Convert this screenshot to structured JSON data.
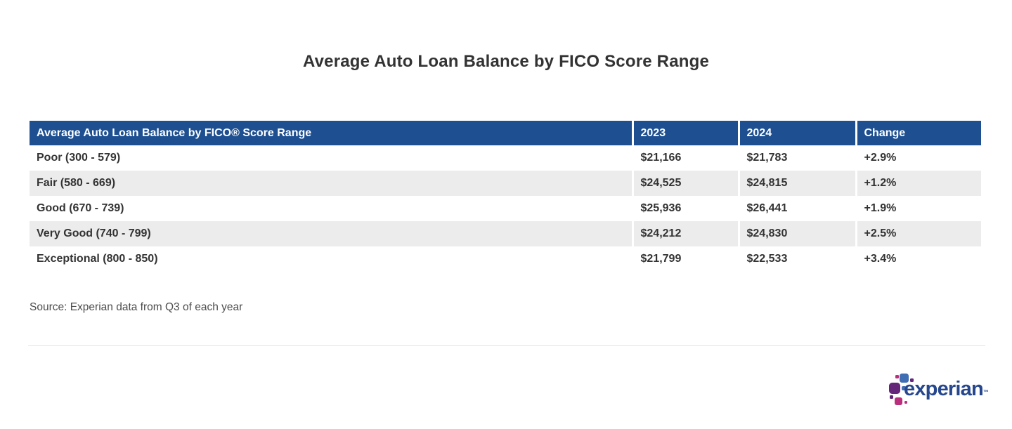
{
  "page": {
    "title": "Average Auto Loan Balance by FICO Score Range",
    "source_note": "Source: Experian data from Q3 of each year"
  },
  "table": {
    "columns": [
      "Average Auto Loan Balance by FICO® Score Range",
      "2023",
      "2024",
      "Change"
    ],
    "rows": [
      {
        "label": "Poor (300 - 579)",
        "y2023": "$21,166",
        "y2024": "$21,783",
        "change": "+2.9%"
      },
      {
        "label": "Fair (580 - 669)",
        "y2023": "$24,525",
        "y2024": "$24,815",
        "change": "+1.2%"
      },
      {
        "label": "Good (670 - 739)",
        "y2023": "$25,936",
        "y2024": "$26,441",
        "change": "+1.9%"
      },
      {
        "label": "Very Good (740 - 799)",
        "y2023": "$24,212",
        "y2024": "$24,830",
        "change": "+2.5%"
      },
      {
        "label": "Exceptional (800 - 850)",
        "y2023": "$21,799",
        "y2024": "$22,533",
        "change": "+3.4%"
      }
    ]
  },
  "logo": {
    "text": "experian",
    "tm": "™"
  },
  "colors": {
    "header_bg": "#1d4f91",
    "row_alt_bg": "#ececec",
    "title_text": "#333333",
    "logo_blue": "#406eb3",
    "logo_purple": "#632678",
    "logo_magenta": "#ba2f7d",
    "logo_text": "#26478d"
  },
  "chart_data": {
    "type": "table",
    "title": "Average Auto Loan Balance by FICO Score Range",
    "columns": [
      "Average Auto Loan Balance by FICO® Score Range",
      "2023",
      "2024",
      "Change"
    ],
    "categories": [
      "Poor (300 - 579)",
      "Fair (580 - 669)",
      "Good (670 - 739)",
      "Very Good (740 - 799)",
      "Exceptional (800 - 850)"
    ],
    "series": [
      {
        "name": "2023",
        "values": [
          21166,
          24525,
          25936,
          24212,
          21799
        ]
      },
      {
        "name": "2024",
        "values": [
          21783,
          24815,
          26441,
          24830,
          22533
        ]
      },
      {
        "name": "Change",
        "values": [
          "+2.9%",
          "+1.2%",
          "+1.9%",
          "+2.5%",
          "+3.4%"
        ]
      }
    ],
    "source": "Source: Experian data from Q3 of each year",
    "layout": {
      "header_bg": "#1d4f91",
      "alternating_rows": true
    }
  }
}
